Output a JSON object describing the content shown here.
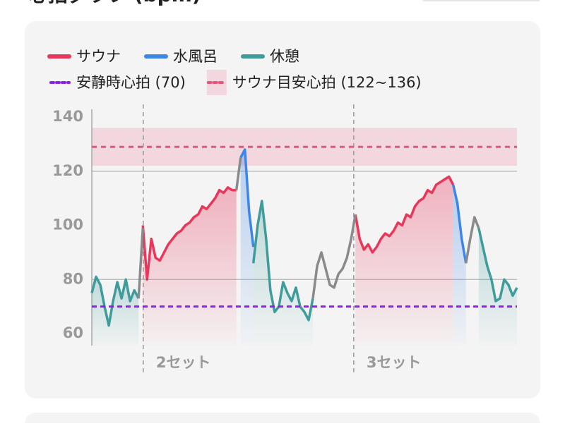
{
  "title": "心拍グラフ (bpm)",
  "chart_data": {
    "type": "line",
    "xlim": [
      0,
      100
    ],
    "ylim": [
      60,
      140
    ],
    "yticks": [
      60,
      80,
      100,
      120,
      140
    ],
    "grid_lines": [
      80,
      120
    ],
    "series": [
      {
        "name": "サウナ",
        "color": "#e8375a",
        "x": [
          12,
          13,
          14,
          15,
          16,
          17,
          18,
          19,
          20,
          21,
          22,
          23,
          24,
          25,
          26,
          27,
          28,
          29,
          30,
          31,
          32,
          33,
          34,
          null,
          62,
          63,
          64,
          65,
          66,
          67,
          68,
          69,
          70,
          71,
          72,
          73,
          74,
          75,
          76,
          77,
          78,
          79,
          80,
          81,
          82,
          83,
          84,
          85
        ],
        "values": [
          100,
          80,
          95,
          88,
          87,
          90,
          93,
          95,
          97,
          98,
          100,
          101,
          103,
          104,
          107,
          106,
          108,
          110,
          113,
          112,
          114,
          113,
          113,
          null,
          104,
          95,
          91,
          93,
          90,
          92,
          95,
          97,
          96,
          98,
          101,
          100,
          104,
          103,
          107,
          109,
          110,
          113,
          112,
          115,
          116,
          117,
          118,
          115
        ]
      },
      {
        "name": "水風呂",
        "color": "#3d86e8",
        "x": [
          35,
          36,
          37,
          38,
          null,
          85,
          86,
          87,
          88
        ],
        "values": [
          125,
          128,
          105,
          92,
          null,
          115,
          108,
          95,
          86
        ]
      },
      {
        "name": "休憩",
        "color": "#3f9c9a",
        "x": [
          0,
          1,
          2,
          3,
          4,
          5,
          6,
          7,
          8,
          9,
          10,
          11,
          null,
          38,
          39,
          40,
          41,
          42,
          43,
          44,
          45,
          46,
          47,
          48,
          49,
          50,
          51,
          52,
          null,
          91,
          92,
          93,
          94,
          95,
          96,
          97,
          98,
          99,
          100
        ],
        "values": [
          75,
          81,
          78,
          70,
          63,
          72,
          79,
          73,
          80,
          72,
          76,
          73,
          null,
          86,
          100,
          109,
          95,
          76,
          68,
          70,
          79,
          75,
          72,
          77,
          70,
          68,
          65,
          73,
          null,
          99,
          92,
          85,
          80,
          72,
          73,
          80,
          78,
          74,
          77
        ]
      },
      {
        "color": "#8a8a8a",
        "x": [
          11,
          12,
          null,
          34,
          35,
          null,
          52,
          53,
          54,
          55,
          56,
          57,
          58,
          59,
          60,
          61,
          62,
          null,
          88,
          89,
          90,
          91
        ],
        "values": [
          73,
          99,
          null,
          113,
          125,
          null,
          73,
          85,
          90,
          84,
          78,
          77,
          82,
          84,
          88,
          95,
          104,
          null,
          86,
          95,
          103,
          99
        ]
      }
    ],
    "reference_line": {
      "label": "安静時心拍 (70)",
      "value": 70,
      "color": "#8a22e6"
    },
    "target_band": {
      "label": "サウナ目安心拍 (122~136)",
      "range": [
        122,
        136
      ],
      "line": 129,
      "color": "#e8557a"
    },
    "set_markers": [
      {
        "x": 12.1,
        "label": "2セット"
      },
      {
        "x": 61.6,
        "label": "3セット"
      }
    ]
  }
}
